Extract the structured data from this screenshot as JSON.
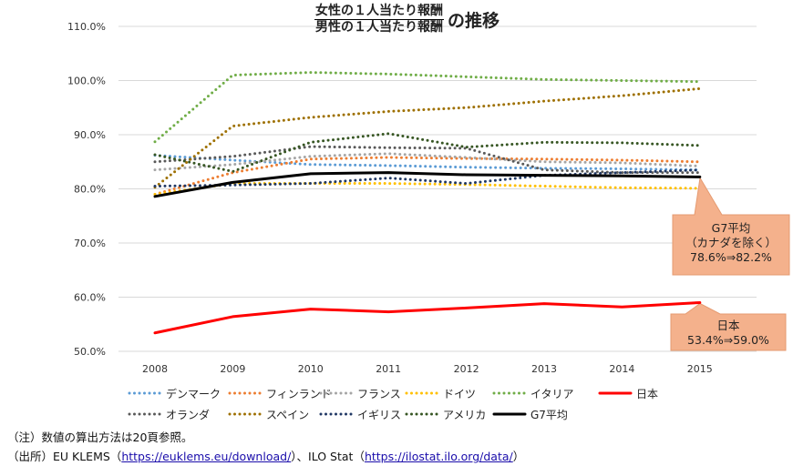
{
  "chart_data": {
    "type": "line",
    "title": {
      "numerator": "女性の１人当たり報酬",
      "denominator": "男性の１人当たり報酬",
      "suffix": "の推移"
    },
    "categories": [
      "2008",
      "2009",
      "2010",
      "2011",
      "2012",
      "2013",
      "2014",
      "2015"
    ],
    "ylim": [
      50,
      110
    ],
    "yticks": [
      "50.0%",
      "60.0%",
      "70.0%",
      "80.0%",
      "90.0%",
      "100.0%",
      "110.0%"
    ],
    "grid": true,
    "legend_position": "bottom",
    "series": [
      {
        "name": "デンマーク",
        "color": "#5b9bd5",
        "style": "dotted",
        "values": [
          86.2,
          85.3,
          84.5,
          84.3,
          84.0,
          83.8,
          83.7,
          83.5
        ]
      },
      {
        "name": "フィンランド",
        "color": "#ed7d31",
        "style": "dotted",
        "values": [
          79.0,
          83.0,
          85.5,
          85.8,
          85.6,
          85.5,
          85.3,
          85.0
        ]
      },
      {
        "name": "フランス",
        "color": "#a5a5a5",
        "style": "dotted",
        "values": [
          83.5,
          84.5,
          86.0,
          86.5,
          85.8,
          85.0,
          84.8,
          84.2
        ]
      },
      {
        "name": "ドイツ",
        "color": "#ffc000",
        "style": "dotted",
        "values": [
          79.0,
          81.0,
          81.0,
          81.0,
          80.8,
          80.5,
          80.2,
          80.1
        ]
      },
      {
        "name": "イタリア",
        "color": "#70ad47",
        "style": "dotted",
        "values": [
          88.7,
          101.0,
          101.5,
          101.2,
          100.7,
          100.2,
          100.0,
          99.8
        ]
      },
      {
        "name": "日本",
        "color": "#ff0000",
        "style": "solid",
        "values": [
          53.4,
          56.4,
          57.8,
          57.3,
          58.0,
          58.8,
          58.2,
          59.0
        ]
      },
      {
        "name": "オランダ",
        "color": "#595959",
        "style": "dotted",
        "values": [
          85.0,
          86.0,
          87.8,
          87.6,
          87.5,
          83.5,
          83.0,
          83.0
        ]
      },
      {
        "name": "スペイン",
        "color": "#9e7000",
        "style": "dotted",
        "values": [
          80.3,
          91.6,
          93.2,
          94.3,
          95.0,
          96.2,
          97.2,
          98.5
        ]
      },
      {
        "name": "イギリス",
        "color": "#203864",
        "style": "dotted",
        "values": [
          80.5,
          80.7,
          81.0,
          82.0,
          81.0,
          82.5,
          83.0,
          83.5
        ]
      },
      {
        "name": "アメリカ",
        "color": "#375623",
        "style": "dotted",
        "values": [
          86.3,
          83.2,
          88.6,
          90.2,
          87.7,
          88.6,
          88.5,
          88.0
        ]
      },
      {
        "name": "G7平均",
        "color": "#000000",
        "style": "solid",
        "values": [
          78.6,
          81.2,
          82.8,
          83.0,
          82.6,
          82.5,
          82.4,
          82.2
        ]
      }
    ],
    "annotations": [
      {
        "series": "G7平均",
        "lines": [
          "G7平均",
          "（カナダを除く）",
          "78.6%⇒82.2%"
        ]
      },
      {
        "series": "日本",
        "lines": [
          "日本",
          "53.4%⇒59.0%"
        ]
      }
    ],
    "callout_color": "#f4b18c"
  },
  "notes": {
    "note_line": "（注）数値の算出方法は20頁参照。",
    "source_prefix": "（出所）EU KLEMS（",
    "source_link1": "https://euklems.eu/download/",
    "source_mid": "）、ILO Stat（",
    "source_link2": "https://ilostat.ilo.org/data/",
    "source_suffix": "）"
  }
}
